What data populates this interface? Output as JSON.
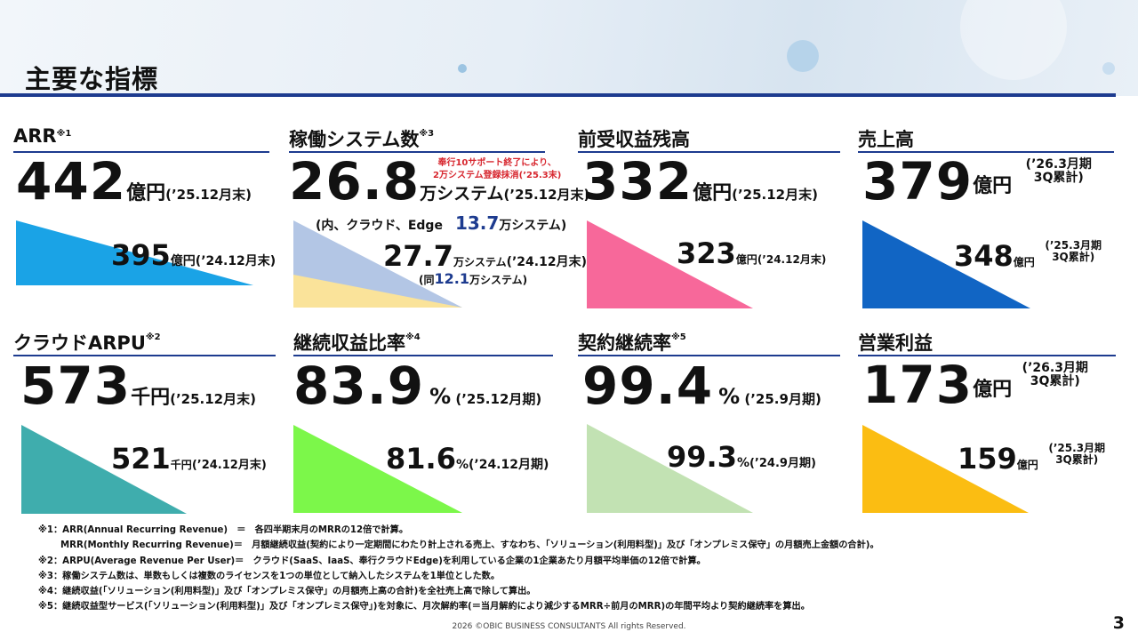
{
  "header": {
    "title": "主要な指標"
  },
  "cards": {
    "arr": {
      "title": "ARR",
      "mark": "※1",
      "value": "442",
      "unit": "億円",
      "period": "(’25.12月末)",
      "prev_value": "395",
      "prev_unit": "億円",
      "prev_period": "(’24.12月末)",
      "color": "#1aa3e6"
    },
    "systems": {
      "title": "稼働システム数",
      "mark": "※3",
      "note_line1": "奉行10サポート終了により、",
      "note_line2": "2万システム登録抹消(’25.3末)",
      "value": "26.8",
      "unit": "万システム",
      "period": "(’25.12月末)",
      "sub_prefix": "(内、クラウド、Edge",
      "sub_value": "13.7",
      "sub_suffix": "万システム)",
      "prev_value": "27.7",
      "prev_unit": "万システム",
      "prev_period": "(’24.12月末)",
      "prev_sub_prefix": "(同",
      "prev_sub_value": "12.1",
      "prev_sub_suffix": "万システム)",
      "color_main": "#b3c6e5",
      "color_sub": "#fae39a"
    },
    "deferred": {
      "title": "前受収益残高",
      "value": "332",
      "unit": "億円",
      "period": "(’25.12月末)",
      "prev_value": "323",
      "prev_unit": "億円",
      "prev_period": "(’24.12月末)",
      "color": "#f7689a"
    },
    "sales": {
      "title": "売上高",
      "value": "379",
      "unit": "億円",
      "period_line1": "(’26.3月期",
      "period_line2": "3Q累計)",
      "prev_value": "348",
      "prev_unit": "億円",
      "prev_period_line1": "(’25.3月期",
      "prev_period_line2": "3Q累計)",
      "color": "#1165c4"
    },
    "arpu": {
      "title": "クラウドARPU",
      "mark": "※2",
      "value": "573",
      "unit": "千円",
      "period": "(’25.12月末)",
      "prev_value": "521",
      "prev_unit": "千円",
      "prev_period": "(’24.12月末)",
      "color": "#3fadad"
    },
    "recurring": {
      "title": "継続収益比率",
      "mark": "※4",
      "value": "83.9",
      "unit": "%",
      "period": " (’25.12月期)",
      "prev_value": "81.6",
      "prev_unit": "%",
      "prev_period": "(’24.12月期)",
      "color": "#7cf74a"
    },
    "retention": {
      "title": "契約継続率",
      "mark": "※5",
      "value": "99.4",
      "unit": "%",
      "period": " (’25.9月期)",
      "prev_value": "99.3",
      "prev_unit": "%",
      "prev_period": "(’24.9月期)",
      "color": "#c2e2b3"
    },
    "operating": {
      "title": "営業利益",
      "value": "173",
      "unit": "億円",
      "period_line1": "(’26.3月期",
      "period_line2": "3Q累計)",
      "prev_value": "159",
      "prev_unit": "億円",
      "prev_period_line1": "(’25.3月期",
      "prev_period_line2": "3Q累計)",
      "color": "#fbbd12"
    }
  },
  "footnotes": [
    "※1：ARR(Annual Recurring Revenue)　＝　各四半期末月のMRRの12倍で計算。",
    "MRR(Monthly Recurring Revenue)＝　月額継続収益(契約により一定期間にわたり計上される売上、すなわち、「ソリューション(利用料型)」及び「オンプレミス保守」の月額売上金額の合計)。",
    "※2：ARPU(Average Revenue Per User)＝　クラウド(SaaS、IaaS、奉行クラウドEdge)を利用している企業の1企業あたり月額平均単価の12倍で計算。",
    "※3：稼働システム数は、単数もしくは複数のライセンスを1つの単位として納入したシステムを1単位とした数。",
    "※4：継続収益(「ソリューション(利用料型)」及び「オンプレミス保守」の月額売上高の合計)を全社売上高で除して算出。",
    "※5：継続収益型サービス(「ソリューション(利用料型)」及び「オンプレミス保守」)を対象に、月次解約率(＝当月解約により減少するMRR÷前月のMRR)の年間平均より契約継続率を算出。"
  ],
  "footer": {
    "copyright": "2026 ©OBIC BUSINESS CONSULTANTS All rights Reserved.",
    "page_number": "3"
  }
}
